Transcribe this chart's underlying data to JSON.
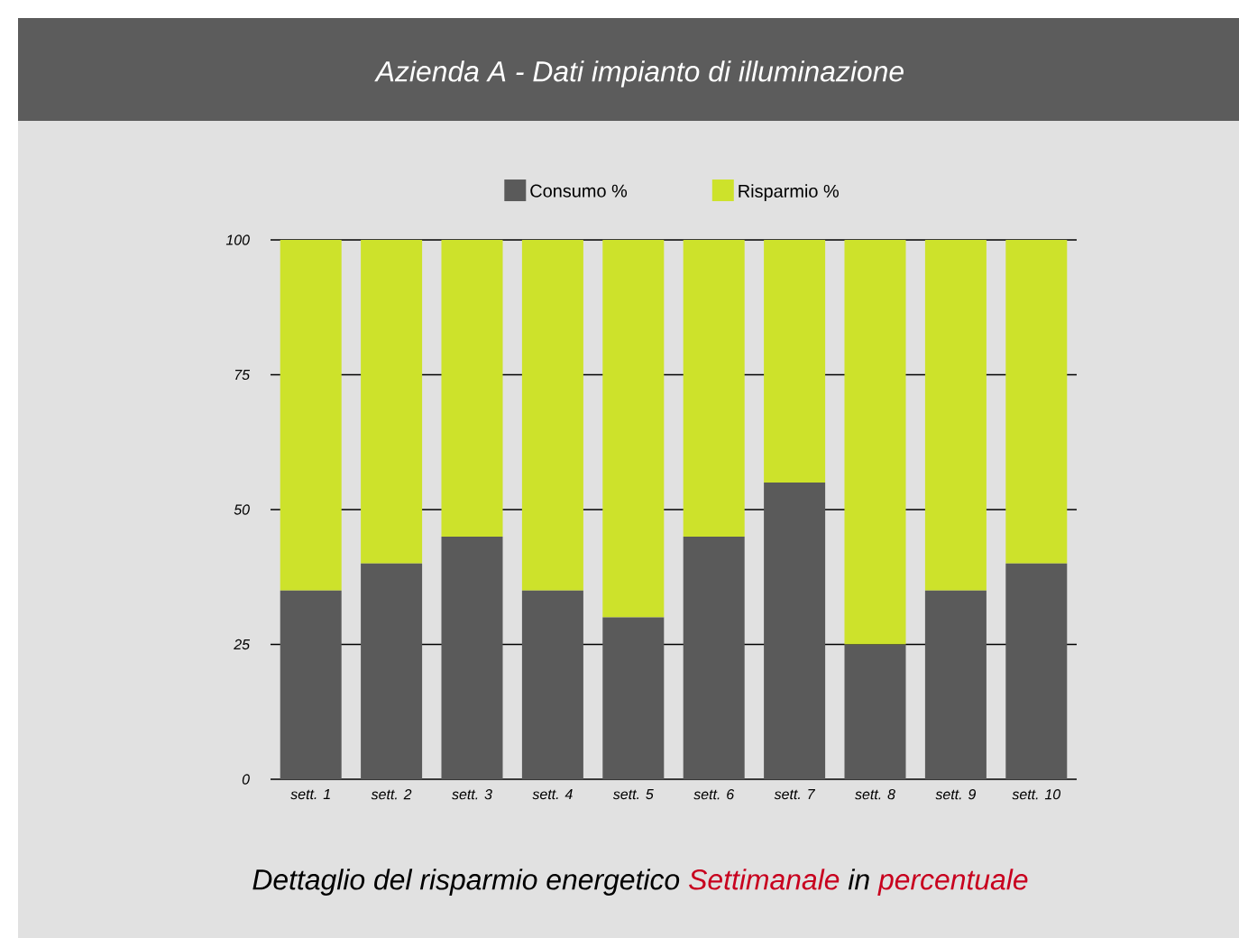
{
  "chart_data": {
    "type": "bar",
    "title": "Azienda A - Dati impianto di illuminazione",
    "stacked": true,
    "categories": [
      "sett. 1",
      "sett. 2",
      "sett. 3",
      "sett. 4",
      "sett. 5",
      "sett. 6",
      "sett. 7",
      "sett. 8",
      "sett. 9",
      "sett. 10"
    ],
    "series": [
      {
        "name": "Consumo %",
        "color": "#5a5a5a",
        "values": [
          35,
          40,
          45,
          35,
          30,
          45,
          55,
          25,
          35,
          40
        ]
      },
      {
        "name": "Risparmio %",
        "color": "#cde22b",
        "values": [
          65,
          60,
          55,
          65,
          70,
          55,
          45,
          75,
          65,
          60
        ]
      }
    ],
    "ylim": [
      0,
      100
    ],
    "yticks": [
      0,
      25,
      50,
      75,
      100
    ],
    "grid": "y",
    "legend": "top",
    "annotations": [
      "Dettaglio del risparmio energetico",
      "Settimanale",
      "in",
      "percentuale"
    ]
  }
}
